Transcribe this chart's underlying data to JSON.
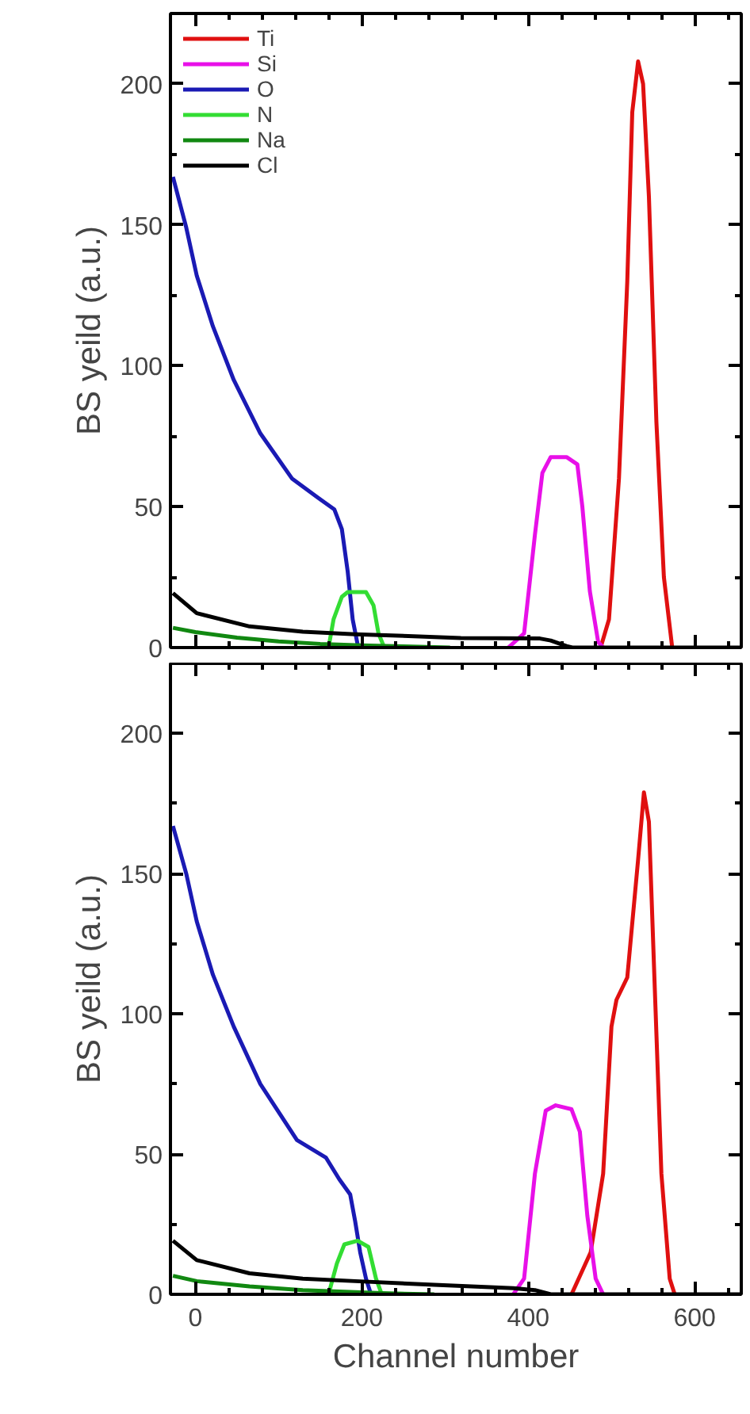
{
  "chart_data": [
    {
      "type": "line",
      "ylabel": "BS yeild (a.u.)",
      "xlim": [
        -30,
        656
      ],
      "xticks": [
        0,
        200,
        400,
        600
      ],
      "ylim": [
        0,
        225
      ],
      "yticks": [
        0,
        50,
        100,
        150,
        200
      ],
      "tick_labels": "y",
      "legend": "top left",
      "grid": false,
      "series": [
        {
          "name": "Ti",
          "color": "#e01010",
          "x": [
            487,
            497,
            509,
            519,
            525,
            532,
            538,
            545,
            554,
            563,
            573
          ],
          "values": [
            0,
            10,
            60,
            130,
            190,
            208,
            200,
            160,
            80,
            25,
            0
          ]
        },
        {
          "name": "Si",
          "color": "#e810e8",
          "x": [
            376,
            395,
            408,
            417,
            427,
            446,
            459,
            465,
            474,
            484,
            490
          ],
          "values": [
            0,
            5,
            40,
            62,
            67.6,
            67.6,
            65,
            50,
            20,
            2,
            0
          ]
        },
        {
          "name": "O",
          "color": "#1a1ab4",
          "x": [
            -27,
            -11,
            1.6,
            21,
            46,
            78,
            116,
            148,
            167,
            176,
            183,
            189,
            195
          ],
          "values": [
            167,
            149,
            132,
            114,
            95,
            76,
            60,
            53,
            49,
            42,
            27,
            10,
            1
          ]
        },
        {
          "name": "N",
          "color": "#33dd33",
          "x": [
            160,
            166,
            176,
            183,
            205,
            214,
            220,
            227
          ],
          "values": [
            0,
            10,
            18,
            19.7,
            19.7,
            15,
            5,
            0
          ]
        },
        {
          "name": "Na",
          "color": "#118811",
          "x": [
            -27,
            0,
            50,
            100,
            150,
            200,
            250,
            306
          ],
          "values": [
            7,
            5.5,
            3.5,
            2.2,
            1.3,
            0.8,
            0.4,
            0
          ]
        },
        {
          "name": "Cl",
          "color": "#000000",
          "x": [
            -27,
            1.6,
            65,
            129,
            192,
            256,
            319,
            414,
            427,
            446,
            453,
            656
          ],
          "values": [
            19.3,
            12.2,
            7.5,
            5.6,
            4.7,
            4.1,
            3.4,
            3.2,
            2.5,
            0.5,
            0,
            0
          ]
        }
      ]
    },
    {
      "type": "line",
      "xlabel": "Channel number",
      "ylabel": "BS yeild (a.u.)",
      "xlim": [
        -30,
        656
      ],
      "xticks": [
        0,
        200,
        400,
        600
      ],
      "ylim": [
        0,
        225
      ],
      "yticks": [
        0,
        50,
        100,
        150,
        200
      ],
      "grid": false,
      "series": [
        {
          "color": "#e01010",
          "x": [
            452,
            475,
            490,
            500,
            506,
            519,
            532,
            539,
            545,
            551,
            560,
            570,
            576
          ],
          "values": [
            0,
            15,
            43,
            95.5,
            105,
            113,
            155,
            179,
            168.5,
            118,
            43,
            5.6,
            0
          ]
        },
        {
          "color": "#e810e8",
          "x": [
            382,
            395,
            408,
            421,
            433,
            452,
            462,
            471,
            481,
            490
          ],
          "values": [
            0,
            5.6,
            43,
            65.5,
            67.4,
            66,
            58,
            28,
            5.6,
            0
          ]
        },
        {
          "color": "#1a1ab4",
          "x": [
            -27,
            -11,
            1.6,
            21,
            46,
            78,
            122,
            157,
            173,
            186,
            192,
            198,
            205,
            211
          ],
          "values": [
            167,
            150,
            133,
            114,
            95.5,
            75,
            55,
            48.7,
            41,
            35.6,
            26,
            15,
            5.6,
            0
          ]
        },
        {
          "color": "#33dd33",
          "x": [
            160,
            170,
            179,
            195,
            208,
            217,
            224
          ],
          "values": [
            0,
            11,
            17.8,
            19.1,
            16.9,
            5.6,
            0
          ]
        },
        {
          "color": "#118811",
          "x": [
            -27,
            1.6,
            65,
            129,
            224,
            287
          ],
          "values": [
            6.6,
            4.7,
            2.8,
            1.5,
            0.4,
            0
          ]
        },
        {
          "color": "#000000",
          "x": [
            -27,
            1.6,
            65,
            129,
            192,
            287,
            382,
            408,
            427,
            656
          ],
          "values": [
            19.1,
            12.2,
            7.5,
            5.6,
            4.7,
            3.4,
            2.2,
            1.5,
            0,
            0
          ]
        }
      ]
    }
  ]
}
